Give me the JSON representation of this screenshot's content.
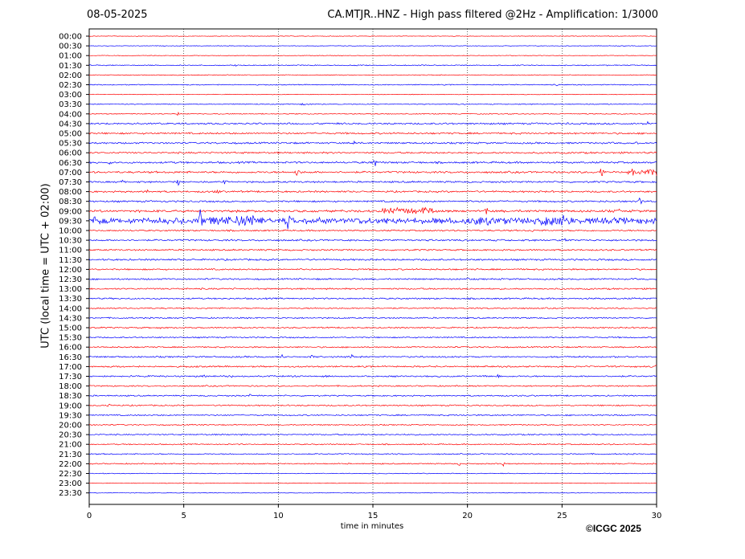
{
  "header": {
    "date": "08-05-2025",
    "title": "CA.MTJR..HNZ - High pass filtered @2Hz - Amplification: 1/3000"
  },
  "footer": {
    "copyright": "©ICGC 2025"
  },
  "colors": {
    "trace_a": "#ff0000",
    "trace_b": "#0000ff",
    "grid": "#000000",
    "axis": "#000000"
  },
  "chart_data": {
    "type": "line",
    "xlabel": "time in minutes",
    "ylabel": "UTC (local time = UTC + 02:00)",
    "xlim": [
      0,
      30
    ],
    "xticks": [
      0,
      5,
      10,
      15,
      20,
      25,
      30
    ],
    "grid": "vertical dotted lines at 5, 10, 15, 20, 25",
    "row_labels": [
      "00:00",
      "00:30",
      "01:00",
      "01:30",
      "02:00",
      "02:30",
      "03:00",
      "03:30",
      "04:00",
      "04:30",
      "05:00",
      "05:30",
      "06:00",
      "06:30",
      "07:00",
      "07:30",
      "08:00",
      "08:30",
      "09:00",
      "09:30",
      "10:00",
      "10:30",
      "11:00",
      "11:30",
      "12:00",
      "12:30",
      "13:00",
      "13:30",
      "14:00",
      "14:30",
      "15:00",
      "15:30",
      "16:00",
      "16:30",
      "17:00",
      "17:30",
      "18:00",
      "18:30",
      "19:00",
      "19:30",
      "20:00",
      "20:30",
      "21:00",
      "21:30",
      "22:00",
      "22:30",
      "23:00",
      "23:30"
    ],
    "series": [
      {
        "color": "trace_b",
        "description": "even rows (HH:00) alternate; line colors alternate blue/red per row starting blue"
      }
    ],
    "row_noise_level": [
      0.3,
      0.3,
      0.3,
      0.5,
      0.4,
      0.5,
      0.3,
      0.5,
      0.5,
      0.9,
      0.9,
      0.9,
      0.9,
      1.0,
      1.0,
      0.9,
      0.9,
      0.9,
      1.2,
      2.0,
      0.8,
      0.9,
      0.8,
      0.9,
      0.8,
      0.8,
      0.8,
      0.8,
      0.7,
      0.7,
      0.7,
      0.7,
      0.7,
      0.8,
      0.8,
      0.8,
      0.7,
      0.7,
      0.7,
      0.7,
      0.6,
      0.7,
      0.6,
      0.6,
      0.6,
      0.4,
      0.3,
      0.3
    ],
    "events": [
      {
        "row": 3,
        "minute": 7.8,
        "amp": 2
      },
      {
        "row": 5,
        "minute": 24.7,
        "amp": 4
      },
      {
        "row": 7,
        "minute": 11.3,
        "amp": 3
      },
      {
        "row": 8,
        "minute": 4.7,
        "amp": 2
      },
      {
        "row": 9,
        "minute": 15.0,
        "amp": 3
      },
      {
        "row": 9,
        "minute": 21.2,
        "amp": 3
      },
      {
        "row": 9,
        "minute": 25.3,
        "amp": 3
      },
      {
        "row": 9,
        "minute": 29.5,
        "amp": 3
      },
      {
        "row": 11,
        "minute": 14.0,
        "amp": 3
      },
      {
        "row": 11,
        "minute": 29.0,
        "amp": 3
      },
      {
        "row": 13,
        "minute": 1.1,
        "amp": 4
      },
      {
        "row": 13,
        "minute": 15.1,
        "amp": 6
      },
      {
        "row": 14,
        "minute": 11.0,
        "amp": 8
      },
      {
        "row": 14,
        "minute": 27.1,
        "amp": 9
      },
      {
        "row": 14,
        "minute": 29.3,
        "amp": 3
      },
      {
        "row": 15,
        "minute": 1.8,
        "amp": 4
      },
      {
        "row": 15,
        "minute": 4.7,
        "amp": 4
      },
      {
        "row": 15,
        "minute": 7.2,
        "amp": 4
      },
      {
        "row": 16,
        "minute": 3.1,
        "amp": 3
      },
      {
        "row": 16,
        "minute": 6.8,
        "amp": 4
      },
      {
        "row": 17,
        "minute": 29.1,
        "amp": 7
      },
      {
        "row": 18,
        "minute": 16.5,
        "amp": 3
      },
      {
        "row": 18,
        "minute": 21.0,
        "amp": 6
      },
      {
        "row": 18,
        "minute": 28.0,
        "amp": 3
      },
      {
        "row": 19,
        "minute": 0.3,
        "amp": 6
      },
      {
        "row": 19,
        "minute": 5.9,
        "amp": 28
      },
      {
        "row": 19,
        "minute": 10.5,
        "amp": 16
      },
      {
        "row": 19,
        "minute": 24.3,
        "amp": 11
      },
      {
        "row": 19,
        "minute": 24.8,
        "amp": 8
      },
      {
        "row": 20,
        "minute": 23.5,
        "amp": 3
      },
      {
        "row": 21,
        "minute": 13.8,
        "amp": 3
      },
      {
        "row": 21,
        "minute": 25.2,
        "amp": 3
      },
      {
        "row": 25,
        "minute": 20.0,
        "amp": 3
      },
      {
        "row": 26,
        "minute": 5.2,
        "amp": 2
      },
      {
        "row": 30,
        "minute": 3.8,
        "amp": 2
      },
      {
        "row": 33,
        "minute": 10.2,
        "amp": 3
      },
      {
        "row": 33,
        "minute": 11.8,
        "amp": 3
      },
      {
        "row": 33,
        "minute": 13.9,
        "amp": 3
      },
      {
        "row": 34,
        "minute": 30.0,
        "amp": 3
      },
      {
        "row": 35,
        "minute": 6.1,
        "amp": 4
      },
      {
        "row": 35,
        "minute": 7.6,
        "amp": 5
      },
      {
        "row": 35,
        "minute": 21.6,
        "amp": 3
      },
      {
        "row": 37,
        "minute": 8.5,
        "amp": 3
      },
      {
        "row": 38,
        "minute": 1.0,
        "amp": 3
      },
      {
        "row": 44,
        "minute": 19.6,
        "amp": 3
      },
      {
        "row": 44,
        "minute": 21.9,
        "amp": 3
      }
    ],
    "bursts": [
      {
        "row": 18,
        "from": 15.5,
        "to": 18.2,
        "amp": 3
      },
      {
        "row": 19,
        "from": 0.2,
        "to": 30.0,
        "amp": 3
      },
      {
        "row": 19,
        "from": 5.8,
        "to": 9.5,
        "amp": 5
      },
      {
        "row": 19,
        "from": 20.0,
        "to": 22.0,
        "amp": 4
      },
      {
        "row": 19,
        "from": 23.8,
        "to": 25.6,
        "amp": 5
      },
      {
        "row": 14,
        "from": 28.5,
        "to": 30.0,
        "amp": 3
      }
    ]
  }
}
